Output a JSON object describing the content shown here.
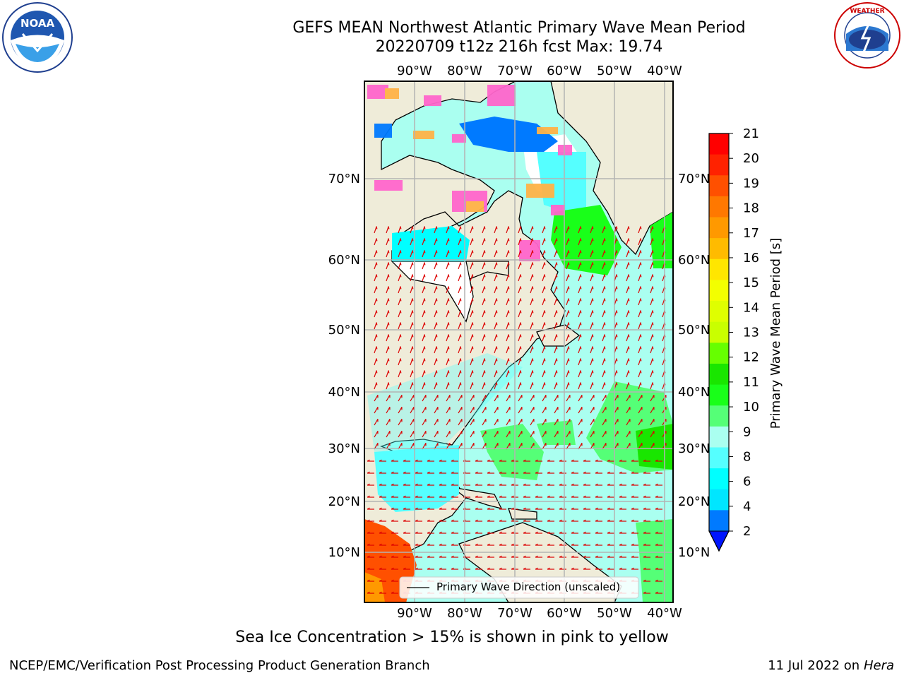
{
  "title_line1": "GEFS MEAN Northwest Atlantic Primary Wave Mean Period",
  "title_line2": "20220709 t12z 216h fcst   Max: 19.74",
  "logos": {
    "left": {
      "icon": "noaa-logo",
      "text": "NOAA",
      "ring_text": "NATIONAL OCEANIC AND ATMOSPHERIC ADMINISTRATION · U.S. DEPARTMENT OF COMMERCE"
    },
    "right": {
      "icon": "nws-logo",
      "ring_text": "NATIONAL WEATHER SERVICE"
    }
  },
  "lon_labels": [
    "90°W",
    "80°W",
    "70°W",
    "60°W",
    "50°W",
    "40°W"
  ],
  "lat_labels": [
    "70°N",
    "60°N",
    "50°N",
    "40°N",
    "30°N",
    "20°N",
    "10°N"
  ],
  "colorbar": {
    "label": "Primary Wave Mean Period [s]",
    "ticks": [
      "21",
      "20",
      "19",
      "18",
      "17",
      "16",
      "15",
      "14",
      "13",
      "12",
      "11",
      "10",
      "9",
      "8",
      "6",
      "4",
      "2"
    ],
    "colors": [
      "#ff0000",
      "#ff2200",
      "#ff5000",
      "#ff7800",
      "#ff9900",
      "#ffbb00",
      "#ffe600",
      "#f3ff00",
      "#dfff00",
      "#c9ff00",
      "#66ff00",
      "#19e600",
      "#19ff19",
      "#55ff77",
      "#aafff0",
      "#55ffff",
      "#00ffff",
      "#00e6ff",
      "#007aff",
      "#0015ff"
    ]
  },
  "legend": {
    "label": "Primary Wave Direction (unscaled)"
  },
  "sea_ice_note": "Sea Ice Concentration > 15% is shown in pink to yellow",
  "credit": "NCEP/EMC/Verification Post Processing Product Generation Branch",
  "date_prefix": "11 Jul 2022 on ",
  "date_host": "Hera",
  "colors": {
    "land": "#efecd9",
    "arrow": "#dd0000",
    "grid": "#b3b3b3"
  }
}
